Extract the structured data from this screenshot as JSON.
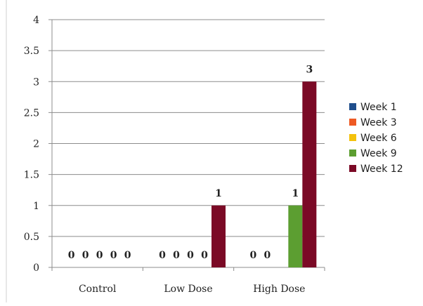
{
  "chart_data": {
    "type": "bar",
    "title": "",
    "xlabel": "",
    "ylabel": "",
    "categories": [
      "Control",
      "Low Dose",
      "High Dose"
    ],
    "ylim": [
      0,
      4
    ],
    "yticks": [
      0,
      0.5,
      1,
      1.5,
      2,
      2.5,
      3,
      3.5,
      4
    ],
    "ytick_labels": [
      "0",
      "0.5",
      "1",
      "1.5",
      "2",
      "2.5",
      "3",
      "3.5",
      "4"
    ],
    "grid": true,
    "legend_position": "right",
    "data_labels": true,
    "series": [
      {
        "name": "Week 1",
        "color": "#1f4e8c",
        "values": [
          0,
          0,
          0
        ]
      },
      {
        "name": "Week 3",
        "color": "#ee5a24",
        "values": [
          0,
          0,
          0
        ]
      },
      {
        "name": "Week 6",
        "color": "#f4c20d",
        "values": [
          0,
          0,
          null
        ]
      },
      {
        "name": "Week 9",
        "color": "#5c9e31",
        "values": [
          0,
          0,
          1
        ]
      },
      {
        "name": "Week 12",
        "color": "#7b0a26",
        "values": [
          0,
          1,
          3
        ]
      }
    ]
  }
}
